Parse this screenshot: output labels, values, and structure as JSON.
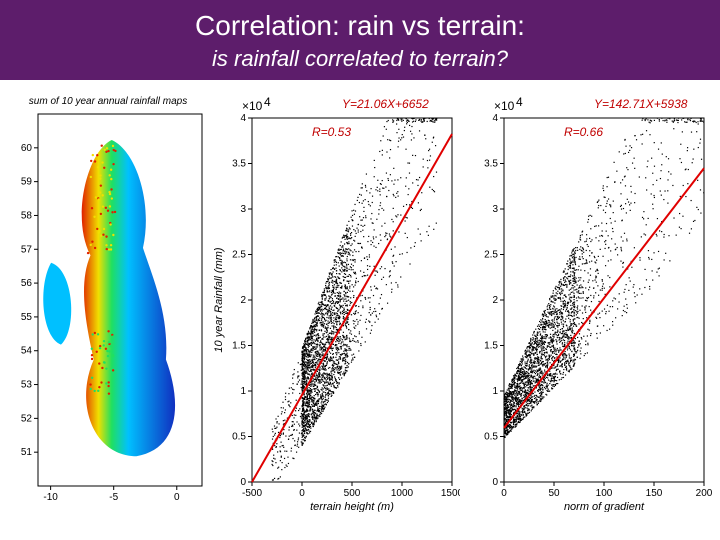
{
  "header": {
    "title": "Correlation: rain vs terrain:",
    "subtitle": "is rainfall correlated to terrain?"
  },
  "map": {
    "title": "sum of 10 year annual rainfall maps",
    "xlabel": "",
    "ylabel": "",
    "xlim": [
      -11,
      2
    ],
    "ylim": [
      50,
      61
    ],
    "xticks": [
      -10,
      -5,
      0
    ],
    "yticks": [
      51,
      52,
      53,
      54,
      55,
      56,
      57,
      58,
      59,
      60
    ],
    "background_color": "#ffffff",
    "colorbar": {
      "low": "#1030c0",
      "mid1": "#00c0ff",
      "mid2": "#20e060",
      "mid3": "#f0e000",
      "high": "#e02000"
    }
  },
  "scatter1": {
    "type": "scatter",
    "equation": "Y=21.06X+6652",
    "rlabel": "R=0.53",
    "multiplier": "×10",
    "exponent": "4",
    "xlabel": "terrain height (m)",
    "ylabel": "10 year Rainfall (mm)",
    "xlim": [
      -500,
      1500
    ],
    "ylim": [
      0,
      4
    ],
    "xticks": [
      -500,
      0,
      500,
      1000,
      1500
    ],
    "yticks": [
      0,
      0.5,
      1,
      1.5,
      2,
      2.5,
      3,
      3.5,
      4
    ],
    "fit": {
      "slope": 21.06,
      "intercept": 6652,
      "color": "#e00000",
      "width": 2
    },
    "point_color": "#000000",
    "n_points": 3000
  },
  "scatter2": {
    "type": "scatter",
    "equation": "Y=142.71X+5938",
    "rlabel": "R=0.66",
    "multiplier": "×10",
    "exponent": "4",
    "xlabel": "norm of gradient",
    "ylabel": "",
    "xlim": [
      0,
      200
    ],
    "ylim": [
      0,
      4
    ],
    "xticks": [
      0,
      50,
      100,
      150,
      200
    ],
    "yticks": [
      0,
      0.5,
      1,
      1.5,
      2,
      2.5,
      3,
      3.5,
      4
    ],
    "fit": {
      "slope": 142.71,
      "intercept": 5938,
      "color": "#e00000",
      "width": 2
    },
    "point_color": "#000000",
    "n_points": 3000
  },
  "axis_color": "#000000"
}
